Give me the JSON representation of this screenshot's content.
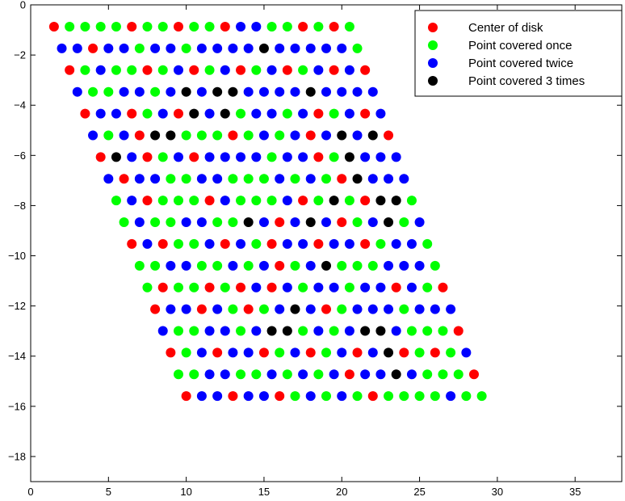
{
  "chart_data": {
    "type": "scatter",
    "title": "",
    "xlabel": "",
    "ylabel": "",
    "xlim": [
      0,
      38
    ],
    "ylim": [
      -19,
      0
    ],
    "xticks": [
      0,
      5,
      10,
      15,
      20,
      25,
      30,
      35
    ],
    "yticks": [
      0,
      -2,
      -4,
      -6,
      -8,
      -10,
      -12,
      -14,
      -16,
      -18
    ],
    "xtick_labels": [
      "0",
      "5",
      "10",
      "15",
      "20",
      "25",
      "30",
      "35"
    ],
    "ytick_labels": [
      "0",
      "−2",
      "−4",
      "−6",
      "−8",
      "−10",
      "−12",
      "−14",
      "−16",
      "−18"
    ],
    "grid": false,
    "legend_position": "top-right",
    "grid_points": {
      "rows": 18,
      "columns": 20,
      "x_start": 1.5,
      "x_step": 1.0,
      "row_x_shift": 0.5,
      "y_start": -0.87,
      "y_step": -0.866
    },
    "series": [
      {
        "name": "Center of disk",
        "color": "#ff0000",
        "value": 1
      },
      {
        "name": "Point covered once",
        "color": "#00ff00",
        "value": 2
      },
      {
        "name": "Point covered twice",
        "color": "#0000ff",
        "value": 3
      },
      {
        "name": "Point covered 3 times",
        "color": "#000000",
        "value": 4
      }
    ],
    "coverage_rows": [
      [
        1,
        2,
        2,
        2,
        2,
        1,
        2,
        2,
        1,
        2,
        2,
        1,
        3,
        3,
        2,
        2,
        1,
        2,
        1,
        2
      ],
      [
        3,
        3,
        1,
        3,
        3,
        2,
        3,
        3,
        2,
        3,
        3,
        3,
        3,
        4,
        3,
        3,
        3,
        3,
        3,
        2
      ],
      [
        1,
        2,
        3,
        2,
        2,
        1,
        2,
        3,
        1,
        2,
        3,
        1,
        2,
        3,
        1,
        2,
        3,
        1,
        3,
        1
      ],
      [
        3,
        2,
        2,
        3,
        3,
        2,
        3,
        4,
        3,
        4,
        4,
        3,
        3,
        3,
        3,
        4,
        3,
        3,
        3,
        3
      ],
      [
        1,
        3,
        3,
        1,
        2,
        3,
        1,
        4,
        3,
        4,
        2,
        3,
        3,
        2,
        3,
        1,
        2,
        3,
        1,
        3
      ],
      [
        3,
        2,
        3,
        1,
        4,
        4,
        2,
        2,
        2,
        1,
        2,
        3,
        2,
        3,
        1,
        3,
        4,
        3,
        4,
        1
      ],
      [
        1,
        4,
        3,
        1,
        2,
        3,
        1,
        3,
        3,
        3,
        3,
        2,
        3,
        3,
        1,
        2,
        4,
        3,
        3,
        3
      ],
      [
        3,
        1,
        3,
        3,
        2,
        2,
        3,
        3,
        2,
        2,
        2,
        3,
        2,
        3,
        2,
        1,
        4,
        3,
        3,
        3
      ],
      [
        2,
        3,
        1,
        2,
        2,
        2,
        1,
        3,
        2,
        2,
        2,
        3,
        1,
        2,
        4,
        2,
        1,
        4,
        4,
        2
      ],
      [
        2,
        3,
        2,
        2,
        3,
        3,
        2,
        2,
        4,
        3,
        1,
        3,
        4,
        3,
        1,
        2,
        3,
        4,
        2,
        3
      ],
      [
        1,
        3,
        1,
        2,
        2,
        3,
        1,
        3,
        2,
        1,
        3,
        3,
        1,
        3,
        3,
        1,
        2,
        3,
        3,
        2
      ],
      [
        2,
        2,
        3,
        3,
        2,
        2,
        3,
        2,
        3,
        1,
        2,
        3,
        4,
        2,
        2,
        2,
        3,
        3,
        3,
        2
      ],
      [
        2,
        1,
        2,
        2,
        1,
        2,
        1,
        3,
        1,
        3,
        2,
        3,
        3,
        2,
        3,
        3,
        1,
        3,
        2,
        1
      ],
      [
        1,
        3,
        3,
        1,
        3,
        2,
        1,
        2,
        3,
        4,
        3,
        1,
        2,
        3,
        3,
        3,
        2,
        3,
        3,
        3
      ],
      [
        3,
        2,
        2,
        3,
        3,
        2,
        3,
        4,
        4,
        2,
        3,
        2,
        3,
        4,
        4,
        3,
        2,
        2,
        2,
        1
      ],
      [
        1,
        2,
        3,
        1,
        3,
        3,
        1,
        2,
        3,
        1,
        2,
        3,
        1,
        3,
        4,
        1,
        2,
        1,
        2,
        3
      ],
      [
        2,
        2,
        3,
        3,
        2,
        2,
        3,
        2,
        3,
        2,
        3,
        1,
        3,
        3,
        4,
        3,
        2,
        2,
        2,
        1
      ],
      [
        1,
        3,
        3,
        1,
        3,
        3,
        1,
        2,
        3,
        2,
        3,
        2,
        1,
        2,
        2,
        2,
        2,
        3,
        2,
        2
      ]
    ]
  }
}
